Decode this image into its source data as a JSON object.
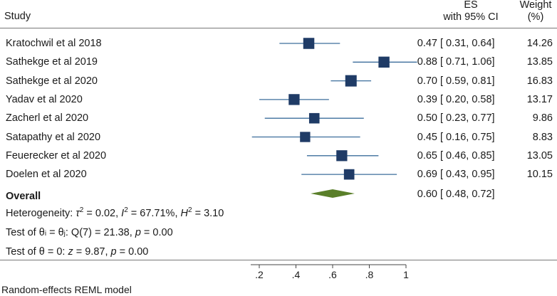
{
  "header": {
    "study_label": "Study",
    "es_label_line1": "ES",
    "es_label_line2": "with 95% CI",
    "weight_label_line1": "Weight",
    "weight_label_line2": "(%)"
  },
  "footer": {
    "overall_label": "Overall",
    "heterogeneity": {
      "prefix": "Heterogeneity: ",
      "tau_symbol": "τ",
      "tau_exp": "2",
      "tau_value": " = 0.02, ",
      "i_symbol": "I",
      "i_exp": "2",
      "i_value": " = 67.71%, ",
      "h_symbol": "H",
      "h_exp": "2",
      "h_value": " = 3.10"
    },
    "test_theta_eq": {
      "prefix": "Test of θ",
      "sub_i": "i",
      "mid": " = θ",
      "sub_j": "j",
      "q": ": Q(7) = 21.38, ",
      "p": "p",
      "p_value": " = 0.00"
    },
    "test_theta_zero": {
      "prefix": "Test of θ = 0: ",
      "z": "z",
      "z_value": " = 9.87, ",
      "p": "p",
      "p_value": " = 0.00"
    },
    "model_note": "Random-effects REML model"
  },
  "chart_data": {
    "type": "forest",
    "x_axis": {
      "min": 0.15,
      "max": 1.06,
      "ticks": [
        0.2,
        0.4,
        0.6,
        0.8,
        1.0
      ],
      "tick_labels": [
        ".2",
        ".4",
        ".6",
        ".8",
        "1"
      ]
    },
    "studies": [
      {
        "name": "Kratochwil et al 2018",
        "es": 0.47,
        "lo": 0.31,
        "hi": 0.64,
        "es_text": "0.47",
        "ci_text": "[ 0.31, 0.64]",
        "weight": "14.26"
      },
      {
        "name": "Sathekge et al 2019",
        "es": 0.88,
        "lo": 0.71,
        "hi": 1.06,
        "es_text": "0.88",
        "ci_text": "[ 0.71, 1.06]",
        "weight": "13.85"
      },
      {
        "name": "Sathekge et al 2020",
        "es": 0.7,
        "lo": 0.59,
        "hi": 0.81,
        "es_text": "0.70",
        "ci_text": "[ 0.59, 0.81]",
        "weight": "16.83"
      },
      {
        "name": "Yadav et al 2020",
        "es": 0.39,
        "lo": 0.2,
        "hi": 0.58,
        "es_text": "0.39",
        "ci_text": "[ 0.20, 0.58]",
        "weight": "13.17"
      },
      {
        "name": "Zacherl et al 2020",
        "es": 0.5,
        "lo": 0.23,
        "hi": 0.77,
        "es_text": "0.50",
        "ci_text": "[ 0.23, 0.77]",
        "weight": "9.86"
      },
      {
        "name": "Satapathy et al 2020",
        "es": 0.45,
        "lo": 0.16,
        "hi": 0.75,
        "es_text": "0.45",
        "ci_text": "[ 0.16, 0.75]",
        "weight": "8.83"
      },
      {
        "name": "Feuerecker et al 2020",
        "es": 0.65,
        "lo": 0.46,
        "hi": 0.85,
        "es_text": "0.65",
        "ci_text": "[ 0.46, 0.85]",
        "weight": "13.05"
      },
      {
        "name": "Doelen et al 2020",
        "es": 0.69,
        "lo": 0.43,
        "hi": 0.95,
        "es_text": "0.69",
        "ci_text": "[ 0.43, 0.95]",
        "weight": "10.15"
      }
    ],
    "overall": {
      "es": 0.6,
      "lo": 0.48,
      "hi": 0.72,
      "es_text": "0.60",
      "ci_text": "[ 0.48, 0.72]"
    },
    "colors": {
      "marker": "#1f3b66",
      "ci_line": "#3c6e9c",
      "diamond": "#5a7f2a",
      "axis": "#444444"
    }
  }
}
